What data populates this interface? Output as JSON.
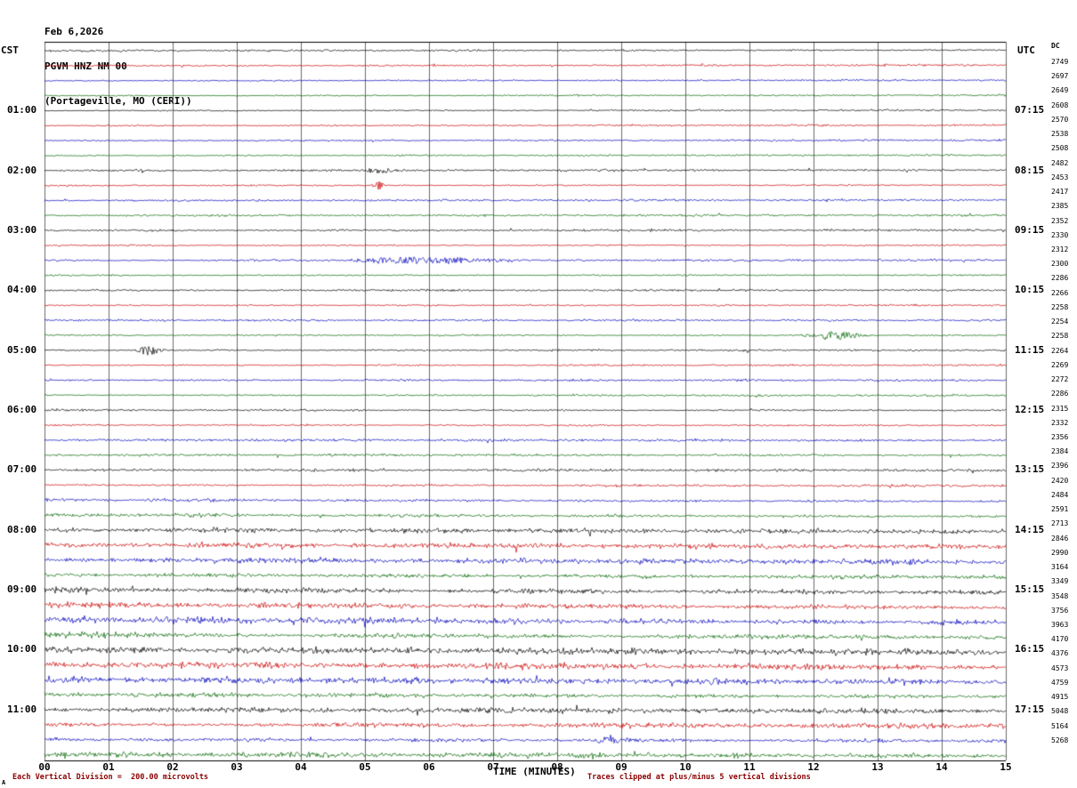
{
  "header": {
    "date": "Feb 6,2026",
    "station": "PGVM HNZ NM 00",
    "location": "(Portageville, MO (CERI))"
  },
  "axes": {
    "left_label": "CST",
    "right_label": "UTC",
    "dc_label": "DC",
    "x_label": "TIME (MINUTES)"
  },
  "footer": {
    "left": "Each Vertical Division =  200.00 microvolts",
    "right": "Traces clipped at plus/minus 5 vertical divisions",
    "corner": "A"
  },
  "colors": {
    "footer_text": "#8b0000",
    "grid": "#6b6b6b",
    "border": "#000000"
  },
  "chart_data": {
    "type": "line",
    "title": "PGVM HNZ NM 00 helicorder, Feb 6,2026, Portageville, MO (CERI)",
    "xlabel": "TIME (MINUTES)",
    "x_range_minutes": [
      0,
      15
    ],
    "x_ticks": [
      "00",
      "01",
      "02",
      "03",
      "04",
      "05",
      "06",
      "07",
      "08",
      "09",
      "10",
      "11",
      "12",
      "13",
      "14",
      "15"
    ],
    "rows": 48,
    "minutes_per_row": 15,
    "colors_cycle": [
      "#000000",
      "#cc0000",
      "#0000bb",
      "#006600"
    ],
    "left_hour_labels": [
      {
        "row": 4,
        "label": "01:00"
      },
      {
        "row": 8,
        "label": "02:00"
      },
      {
        "row": 12,
        "label": "03:00"
      },
      {
        "row": 16,
        "label": "04:00"
      },
      {
        "row": 20,
        "label": "05:00"
      },
      {
        "row": 24,
        "label": "06:00"
      },
      {
        "row": 28,
        "label": "07:00"
      },
      {
        "row": 32,
        "label": "08:00"
      },
      {
        "row": 36,
        "label": "09:00"
      },
      {
        "row": 40,
        "label": "10:00"
      },
      {
        "row": 44,
        "label": "11:00"
      }
    ],
    "right_hour_labels": [
      {
        "row": 4,
        "label": "07:15"
      },
      {
        "row": 8,
        "label": "08:15"
      },
      {
        "row": 12,
        "label": "09:15"
      },
      {
        "row": 16,
        "label": "10:15"
      },
      {
        "row": 20,
        "label": "11:15"
      },
      {
        "row": 24,
        "label": "12:15"
      },
      {
        "row": 28,
        "label": "13:15"
      },
      {
        "row": 32,
        "label": "14:15"
      },
      {
        "row": 36,
        "label": "15:15"
      },
      {
        "row": 40,
        "label": "16:15"
      },
      {
        "row": 44,
        "label": "17:15"
      }
    ],
    "dc_values": [
      2749,
      2697,
      2649,
      2608,
      2570,
      2538,
      2508,
      2482,
      2453,
      2417,
      2385,
      2352,
      2330,
      2312,
      2300,
      2286,
      2266,
      2258,
      2254,
      2258,
      2264,
      2269,
      2272,
      2286,
      2315,
      2332,
      2356,
      2384,
      2396,
      2420,
      2484,
      2591,
      2713,
      2846,
      2990,
      3164,
      3349,
      3548,
      3756,
      3963,
      4170,
      4376,
      4573,
      4759,
      4915,
      5048,
      5164,
      5268
    ],
    "trace_amplitudes": [
      1.1,
      1.1,
      1.1,
      1.1,
      1.1,
      1.1,
      1.1,
      1.1,
      1.2,
      1.2,
      1.2,
      1.2,
      1.2,
      1.2,
      1.2,
      1.2,
      1.2,
      1.2,
      1.2,
      1.2,
      1.2,
      1.2,
      1.2,
      1.2,
      1.4,
      1.4,
      1.4,
      1.4,
      1.5,
      1.6,
      1.9,
      2.1,
      2.5,
      2.7,
      2.9,
      3.1,
      3.7,
      3.8,
      3.7,
      3.6,
      3.5,
      3.4,
      3.3,
      3.2,
      3.0,
      2.9,
      2.8,
      2.8
    ],
    "events": [
      {
        "row": 8,
        "minute": 5.2,
        "duration": 0.3,
        "amp": 2.0
      },
      {
        "row": 9,
        "minute": 5.2,
        "duration": 0.15,
        "amp": 3.5
      },
      {
        "row": 14,
        "minute": 5.9,
        "duration": 1.6,
        "amp": 2.8
      },
      {
        "row": 19,
        "minute": 12.35,
        "duration": 0.6,
        "amp": 3.5
      },
      {
        "row": 20,
        "minute": 1.65,
        "duration": 0.25,
        "amp": 4.5
      },
      {
        "row": 46,
        "minute": 8.8,
        "duration": 0.5,
        "amp": 2.5
      },
      {
        "row": 47,
        "minute": 8.6,
        "duration": 0.4,
        "amp": 2.2
      }
    ],
    "scale_note": "Each Vertical Division =  200.00 microvolts",
    "clip_note": "Traces clipped at plus/minus 5 vertical divisions",
    "grid": "vertical lines every minute",
    "legend_position": "none"
  }
}
